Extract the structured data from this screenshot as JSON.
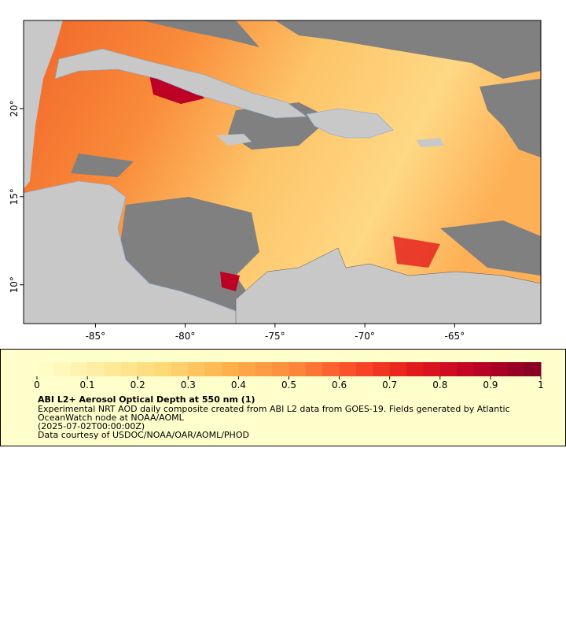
{
  "map": {
    "xlim": [
      -89,
      -60.2
    ],
    "ylim": [
      7.8,
      25
    ],
    "xticks": [
      {
        "value": -85,
        "label": "-85°"
      },
      {
        "value": -80,
        "label": "-80°"
      },
      {
        "value": -75,
        "label": "-75°"
      },
      {
        "value": -70,
        "label": "-70°"
      },
      {
        "value": -65,
        "label": "-65°"
      }
    ],
    "yticks": [
      {
        "value": 10,
        "label": "10°"
      },
      {
        "value": 15,
        "label": "15°"
      },
      {
        "value": 20,
        "label": "20°"
      }
    ]
  },
  "colorbar": {
    "lim": [
      0,
      1
    ],
    "ticks": [
      0,
      0.1,
      0.2,
      0.3,
      0.4,
      0.5,
      0.6,
      0.7,
      0.8,
      0.9,
      1
    ],
    "colors": [
      "#ffffcc",
      "#ffeda0",
      "#fed976",
      "#feb24c",
      "#fd8d3c",
      "#fc4e2a",
      "#e31a1c",
      "#bd0026",
      "#800026"
    ]
  },
  "legend": {
    "title": "ABI L2+ Aerosol Optical Depth at 550 nm (1)",
    "lines": [
      "Experimental NRT AOD daily composite created from ABI L2 data from GOES-19. Fields generated by Atlantic",
      "OceanWatch node at NOAA/AOML",
      "(2025-07-02T00:00:00Z)",
      "Data courtesy of USDOC/NOAA/OAR/AOML/PHOD"
    ]
  }
}
